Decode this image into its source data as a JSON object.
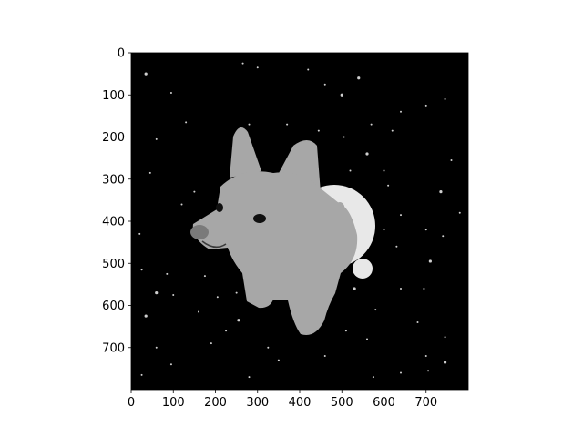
{
  "chart_data": {
    "type": "image",
    "title": "",
    "xlabel": "",
    "ylabel": "",
    "image_width": 800,
    "image_height": 800,
    "xlim": [
      0,
      800
    ],
    "ylim": [
      800,
      0
    ],
    "xticks": [
      0,
      100,
      200,
      300,
      400,
      500,
      600,
      700
    ],
    "yticks": [
      0,
      100,
      200,
      300,
      400,
      500,
      600,
      700
    ],
    "grid": false,
    "colormap": "gray",
    "background_color": "#000000",
    "image_content": {
      "stars": [
        [
          35,
          50
        ],
        [
          95,
          95
        ],
        [
          130,
          165
        ],
        [
          60,
          205
        ],
        [
          265,
          25
        ],
        [
          300,
          35
        ],
        [
          420,
          40
        ],
        [
          500,
          100
        ],
        [
          445,
          185
        ],
        [
          370,
          170
        ],
        [
          280,
          170
        ],
        [
          505,
          200
        ],
        [
          570,
          170
        ],
        [
          620,
          185
        ],
        [
          560,
          240
        ],
        [
          600,
          280
        ],
        [
          610,
          315
        ],
        [
          520,
          280
        ],
        [
          700,
          125
        ],
        [
          745,
          110
        ],
        [
          460,
          75
        ],
        [
          540,
          60
        ],
        [
          640,
          140
        ],
        [
          20,
          430
        ],
        [
          45,
          285
        ],
        [
          120,
          360
        ],
        [
          150,
          330
        ],
        [
          25,
          515
        ],
        [
          60,
          570
        ],
        [
          85,
          525
        ],
        [
          100,
          575
        ],
        [
          175,
          530
        ],
        [
          205,
          580
        ],
        [
          250,
          570
        ],
        [
          160,
          615
        ],
        [
          255,
          635
        ],
        [
          225,
          660
        ],
        [
          325,
          700
        ],
        [
          350,
          730
        ],
        [
          280,
          770
        ],
        [
          190,
          690
        ],
        [
          60,
          700
        ],
        [
          35,
          625
        ],
        [
          25,
          765
        ],
        [
          95,
          740
        ],
        [
          460,
          720
        ],
        [
          575,
          770
        ],
        [
          640,
          760
        ],
        [
          705,
          755
        ],
        [
          745,
          735
        ],
        [
          745,
          675
        ],
        [
          700,
          720
        ],
        [
          560,
          680
        ],
        [
          580,
          610
        ],
        [
          640,
          560
        ],
        [
          695,
          560
        ],
        [
          710,
          495
        ],
        [
          700,
          420
        ],
        [
          740,
          435
        ],
        [
          630,
          460
        ],
        [
          540,
          470
        ],
        [
          600,
          420
        ],
        [
          640,
          385
        ],
        [
          735,
          330
        ],
        [
          760,
          255
        ],
        [
          780,
          380
        ],
        [
          680,
          640
        ],
        [
          510,
          660
        ],
        [
          400,
          640
        ],
        [
          430,
          500
        ],
        [
          530,
          560
        ]
      ],
      "moon_color": "#e8e8e8",
      "dog_color": "#a7a7a7"
    }
  }
}
